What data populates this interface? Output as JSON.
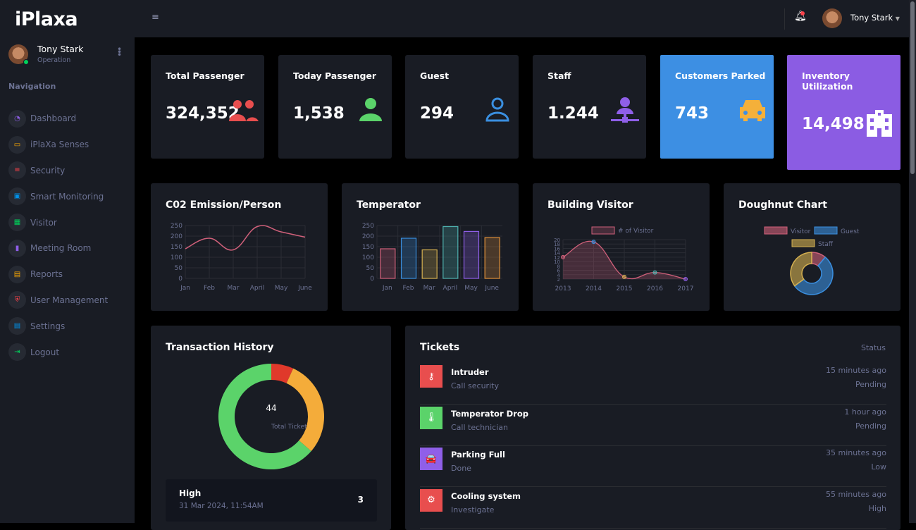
{
  "app": {
    "logo": "iPlaxa"
  },
  "user": {
    "name": "Tony Stark",
    "role": "Operation"
  },
  "sidebar": {
    "heading": "Navigation",
    "items": [
      {
        "label": "Dashboard",
        "icon": "speedometer-icon",
        "color": "#8f5fe8"
      },
      {
        "label": "iPlaXa Senses",
        "icon": "laptop-icon",
        "color": "#ffab00"
      },
      {
        "label": "Security",
        "icon": "list-icon",
        "color": "#fc424a"
      },
      {
        "label": "Smart Monitoring",
        "icon": "monitor-icon",
        "color": "#0090e7"
      },
      {
        "label": "Visitor",
        "icon": "table-icon",
        "color": "#00d25b"
      },
      {
        "label": "Meeting Room",
        "icon": "bar-chart-icon",
        "color": "#8f5fe8"
      },
      {
        "label": "Reports",
        "icon": "contact-card-icon",
        "color": "#ffab00"
      },
      {
        "label": "User Management",
        "icon": "shield-icon",
        "color": "#fc424a"
      },
      {
        "label": "Settings",
        "icon": "document-icon",
        "color": "#0090e7"
      },
      {
        "label": "Logout",
        "icon": "logout-icon",
        "color": "#00d25b"
      }
    ]
  },
  "topbar": {
    "user_name": "Tony Stark"
  },
  "stats": [
    {
      "title": "Total Passenger",
      "value": "324,352",
      "icon": "users-icon",
      "color": "#e84e4e"
    },
    {
      "title": "Today Passenger",
      "value": "1,538",
      "icon": "user-icon",
      "color": "#5bd36a"
    },
    {
      "title": "Guest",
      "value": "294",
      "icon": "user-outline-icon",
      "color": "#3a8fe0"
    },
    {
      "title": "Staff",
      "value": "1.244",
      "icon": "user-network-icon",
      "color": "#8f5fe8"
    },
    {
      "title": "Customers Parked",
      "value": "743",
      "icon": "car-icon",
      "color": "#f4b03a",
      "bg": "#3d8fe3"
    },
    {
      "title": "Inventory Utilization",
      "value": "14,498",
      "icon": "hospital-building-icon",
      "color": "#ffffff",
      "bg": "#8b5ce3"
    }
  ],
  "chart_data": [
    {
      "type": "line",
      "title": "C02 Emission/Person",
      "categories": [
        "Jan",
        "Feb",
        "Mar",
        "April",
        "May",
        "June"
      ],
      "values": [
        140,
        190,
        135,
        245,
        220,
        195
      ],
      "ylim": [
        0,
        250
      ],
      "yticks": [
        0,
        50,
        100,
        150,
        200,
        250
      ],
      "color": "#d0607a",
      "grid": true
    },
    {
      "type": "bar",
      "title": "Temperator",
      "categories": [
        "Jan",
        "Feb",
        "Mar",
        "April",
        "May",
        "June"
      ],
      "values": [
        140,
        190,
        135,
        245,
        222,
        193
      ],
      "ylim": [
        0,
        250
      ],
      "yticks": [
        0,
        50,
        100,
        150,
        200,
        250
      ],
      "colors": [
        "#d0607a",
        "#3a8fe0",
        "#d4b050",
        "#4fb3b0",
        "#8f5fe8",
        "#e0913a"
      ],
      "grid": true
    },
    {
      "type": "area",
      "title": "Building Visitor",
      "categories": [
        "2013",
        "2014",
        "2015",
        "2016",
        "2017"
      ],
      "series": [
        {
          "name": "# of Visitor",
          "values": [
            12,
            19,
            3,
            5,
            2
          ]
        }
      ],
      "ylim": [
        2,
        20
      ],
      "yticks": [
        2,
        4,
        6,
        8,
        10,
        12,
        14,
        16,
        18,
        20
      ],
      "legend": "top",
      "point_colors": [
        "#d0607a",
        "#3a8fe0",
        "#d4b050",
        "#4fb3b0",
        "#8f5fe8"
      ],
      "grid": true
    },
    {
      "type": "pie",
      "title": "Doughnut Chart",
      "categories": [
        "Visitor",
        "Guest",
        "Staff"
      ],
      "values": [
        11,
        54,
        35
      ],
      "colors": [
        "#d0607a",
        "#3a8fe0",
        "#d4b050"
      ],
      "legend": "top"
    }
  ],
  "transaction": {
    "title": "Transaction History",
    "total": "44",
    "total_label": "Total Ticket",
    "segments": [
      {
        "value": 3,
        "color": "#e0392b"
      },
      {
        "value": 13,
        "color": "#f4ac3a"
      },
      {
        "value": 28,
        "color": "#5bd36a"
      }
    ],
    "item": {
      "title": "High",
      "date": "31 Mar 2024, 11:54AM",
      "count": "3"
    }
  },
  "tickets": {
    "title": "Tickets",
    "status_header": "Status",
    "rows": [
      {
        "title": "Intruder",
        "sub": "Call security",
        "time": "15 minutes ago",
        "status": "Pending",
        "icon": "intruder-icon",
        "glyph": "⚷",
        "color": "#e84e4e"
      },
      {
        "title": "Temperator Drop",
        "sub": "Call technician",
        "time": "1 hour ago",
        "status": "Pending",
        "icon": "thermometer-water-icon",
        "glyph": "🌡",
        "color": "#5bd36a"
      },
      {
        "title": "Parking Full",
        "sub": "Done",
        "time": "35 minutes ago",
        "status": "Low",
        "icon": "car-icon",
        "glyph": "🚘",
        "color": "#8f5fe8"
      },
      {
        "title": "Cooling system",
        "sub": "Investigate",
        "time": "55 minutes ago",
        "status": "High",
        "icon": "engine-icon",
        "glyph": "⚙",
        "color": "#e84e4e"
      }
    ]
  }
}
